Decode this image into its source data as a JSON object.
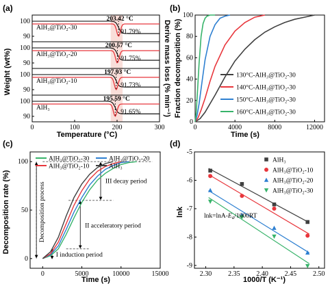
{
  "chart_data": [
    {
      "panel": "(a)",
      "type": "line",
      "xlabel": "Temperature (°C)",
      "ylabel": "Weight (wt%)",
      "y2label": "Derive mass loss (% min⁻¹)",
      "xlim": [
        0,
        300
      ],
      "x_ticks": [
        "0",
        "100",
        "200",
        "300"
      ],
      "series": [
        {
          "name": "AlH₃@TiO₂-30",
          "y_ticks": [
            "100",
            "90"
          ],
          "peak_label": "203.42 °C",
          "residual_label": "91.79%",
          "peak_T": 203.42,
          "residual": 91.79
        },
        {
          "name": "AlH₃@TiO₂-20",
          "y_ticks": [
            "100",
            "90"
          ],
          "peak_label": "200.57 °C",
          "residual_label": "91.75%",
          "peak_T": 200.57,
          "residual": 91.75
        },
        {
          "name": "AlH₃@TiO₂-10",
          "y_ticks": [
            "100",
            "90"
          ],
          "peak_label": "197.93 °C",
          "residual_label": "91.73%",
          "peak_T": 197.93,
          "residual": 91.73
        },
        {
          "name": "AlH₃",
          "y_ticks": [
            "100",
            "90"
          ],
          "peak_label": "195.59 °C",
          "residual_label": "91.65%",
          "peak_T": 195.59,
          "residual": 91.65
        }
      ]
    },
    {
      "panel": "(b)",
      "type": "line",
      "xlabel": "Time (s)",
      "ylabel": "Fraction decomposition (%)",
      "xlim": [
        0,
        13000
      ],
      "ylim": [
        0,
        100
      ],
      "x_ticks": [
        "0",
        "4000",
        "8000",
        "12000"
      ],
      "y_ticks": [
        "0",
        "20",
        "40",
        "60",
        "80",
        "100"
      ],
      "legend": "bottom-right",
      "series": [
        {
          "name": "130°C-AlH₃@TiO₂-30",
          "color": "#404040",
          "x": [
            0,
            500,
            1000,
            2000,
            3000,
            4000,
            5000,
            6000,
            7000,
            8000,
            9000,
            10000,
            11000,
            12000
          ],
          "y": [
            0,
            3,
            9,
            25,
            42,
            57,
            68,
            77,
            84,
            89,
            93,
            96,
            98,
            100
          ]
        },
        {
          "name": "140°C-AlH₃@TiO₂-30",
          "color": "#e8363c",
          "x": [
            0,
            300,
            600,
            1000,
            1500,
            2000,
            3000,
            4000,
            5000,
            6000,
            7000
          ],
          "y": [
            0,
            4,
            11,
            22,
            38,
            52,
            72,
            85,
            93,
            98,
            100
          ]
        },
        {
          "name": "150°C-AlH₃@TiO₂-30",
          "color": "#2d7fd1",
          "x": [
            0,
            200,
            400,
            700,
            1000,
            1500,
            2000,
            2500,
            3000,
            3500
          ],
          "y": [
            0,
            6,
            17,
            38,
            58,
            80,
            91,
            97,
            99,
            100
          ]
        },
        {
          "name": "160°C-AlH₃@TiO₂-30",
          "color": "#37b36a",
          "x": [
            0,
            100,
            250,
            400,
            600,
            800,
            1000,
            1200,
            1500,
            2000
          ],
          "y": [
            0,
            8,
            30,
            55,
            80,
            92,
            97,
            99,
            100,
            100
          ]
        }
      ]
    },
    {
      "panel": "(c)",
      "type": "line",
      "xlabel": "Time (s)",
      "ylabel": "Decomposition rate (%)",
      "xlim": [
        -1600,
        15000
      ],
      "ylim": [
        -10,
        110
      ],
      "x_ticks": [
        "0",
        "5000",
        "10000",
        "15000"
      ],
      "y_ticks": [
        "0",
        "50",
        "100"
      ],
      "legend": "top",
      "series": [
        {
          "name": "AlH₃@TiO₂-30",
          "color": "#37b36a",
          "x": [
            0,
            1000,
            2000,
            3000,
            4000,
            5000,
            6000,
            7000,
            8000,
            9000,
            10000,
            11000,
            12000
          ],
          "y": [
            0,
            3,
            10,
            25,
            42,
            58,
            71,
            81,
            88,
            93,
            97,
            99,
            100
          ]
        },
        {
          "name": "AlH₃@TiO₂-20",
          "color": "#2d7fd1",
          "x": [
            0,
            1000,
            2000,
            3000,
            4000,
            5000,
            6000,
            7000,
            8000,
            9000,
            10000,
            11000
          ],
          "y": [
            0,
            4,
            13,
            30,
            48,
            63,
            76,
            85,
            92,
            96,
            99,
            100
          ]
        },
        {
          "name": "AlH₃@TiO₂-10",
          "color": "#e8363c",
          "x": [
            0,
            1000,
            2000,
            3000,
            4000,
            5000,
            6000,
            7000,
            8000,
            9000,
            10000
          ],
          "y": [
            0,
            5,
            17,
            36,
            55,
            70,
            82,
            90,
            95,
            98,
            100
          ]
        },
        {
          "name": "AlH₃",
          "color": "#404040",
          "x": [
            0,
            1000,
            2000,
            3000,
            4000,
            5000,
            6000,
            7000,
            8000,
            9000
          ],
          "y": [
            0,
            7,
            22,
            44,
            63,
            77,
            87,
            94,
            98,
            100
          ]
        }
      ],
      "annotations": [
        "III decay period",
        "II acceleratory period",
        "I induction period",
        "Decomposition process"
      ]
    },
    {
      "panel": "(d)",
      "type": "scatter",
      "xlabel": "1000/T (K⁻¹)",
      "ylabel": "lnk",
      "xlim": [
        2.28,
        2.51
      ],
      "ylim": [
        -9.1,
        -5
      ],
      "x_ticks": [
        "2.30",
        "2.35",
        "2.40",
        "2.45",
        "2.50"
      ],
      "y_ticks": [
        "-9",
        "-8",
        "-7",
        "-6",
        "-5"
      ],
      "legend": "top-right",
      "formula": "lnk=lnA-Ea/1000RT",
      "series": [
        {
          "name": "AlH₃",
          "color": "#404040",
          "marker": "square",
          "x": [
            2.308,
            2.364,
            2.421,
            2.48
          ],
          "y": [
            -5.66,
            -6.13,
            -6.85,
            -7.47
          ]
        },
        {
          "name": "AlH₃@TiO₂-10",
          "color": "#e8363c",
          "marker": "circle",
          "x": [
            2.308,
            2.364,
            2.421,
            2.48
          ],
          "y": [
            -5.85,
            -6.55,
            -7.0,
            -7.95
          ]
        },
        {
          "name": "AlH₃@TiO₂-20",
          "color": "#2d7fd1",
          "marker": "triangle-up",
          "x": [
            2.308,
            2.364,
            2.421,
            2.48
          ],
          "y": [
            -6.35,
            -7.22,
            -7.68,
            -8.55
          ]
        },
        {
          "name": "AlH₃@TiO₂-30",
          "color": "#37b36a",
          "marker": "triangle-down",
          "x": [
            2.308,
            2.364,
            2.421,
            2.48
          ],
          "y": [
            -6.75,
            -7.3,
            -7.98,
            -9.02
          ]
        }
      ]
    }
  ],
  "panels": {
    "a": {
      "letter": "(a)"
    },
    "b": {
      "letter": "(b)"
    },
    "c": {
      "letter": "(c)"
    },
    "d": {
      "letter": "(d)",
      "formula_main": "lnk=lnA-",
      "formula_var": "E",
      "formula_sub": "a",
      "formula_tail": "/1000RT"
    }
  }
}
